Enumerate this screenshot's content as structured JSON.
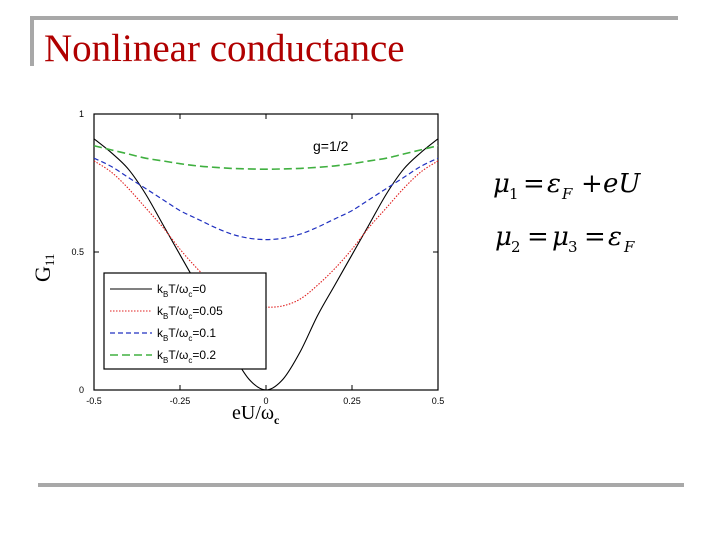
{
  "slide": {
    "title": "Nonlinear conductance"
  },
  "equations": {
    "line1": {
      "mu": "μ",
      "mu_sub": "1",
      "equals": "=",
      "eps": "ε",
      "eps_sub": "F",
      "plus": "+",
      "rest": "eU"
    },
    "line2": {
      "mu_a": "μ",
      "mu_a_sub": "2",
      "equals1": "=",
      "mu_b": "μ",
      "mu_b_sub": "3",
      "equals2": "=",
      "eps": "ε",
      "eps_sub": "F"
    }
  },
  "chart_data": {
    "type": "line",
    "annotation": "g=1/2",
    "xlabel": "eU/ω",
    "xlabel_sub": "c",
    "ylabel": "G",
    "ylabel_sub": "11",
    "xlim": [
      -0.5,
      0.5
    ],
    "ylim": [
      0,
      1
    ],
    "x_ticks": [
      "-0.5",
      "-0.25",
      "0",
      "0.25",
      "0.5"
    ],
    "y_ticks": [
      "0",
      "0.5",
      "1"
    ],
    "legend_position": "bottom-left",
    "x": [
      -0.5,
      -0.45,
      -0.4,
      -0.35,
      -0.3,
      -0.25,
      -0.2,
      -0.15,
      -0.1,
      -0.05,
      0,
      0.05,
      0.1,
      0.15,
      0.2,
      0.25,
      0.3,
      0.35,
      0.4,
      0.45,
      0.5
    ],
    "series": [
      {
        "label_main": "k",
        "label_sub1": "B",
        "label_mid": "T/ω",
        "label_sub2": "c",
        "label_val": "=0",
        "color": "#000000",
        "dash": "none",
        "width": 1.1,
        "values": [
          0.91,
          0.86,
          0.8,
          0.71,
          0.6,
          0.49,
          0.38,
          0.27,
          0.14,
          0.04,
          0.0,
          0.04,
          0.14,
          0.27,
          0.38,
          0.49,
          0.6,
          0.71,
          0.8,
          0.86,
          0.91
        ]
      },
      {
        "label_main": "k",
        "label_sub1": "B",
        "label_mid": "T/ω",
        "label_sub2": "c",
        "label_val": "=0.05",
        "color": "#e02020",
        "dash": "1.5,1.5",
        "width": 1.1,
        "values": [
          0.83,
          0.79,
          0.73,
          0.66,
          0.59,
          0.51,
          0.44,
          0.38,
          0.33,
          0.305,
          0.3,
          0.305,
          0.33,
          0.38,
          0.44,
          0.51,
          0.59,
          0.66,
          0.73,
          0.79,
          0.83
        ]
      },
      {
        "label_main": "k",
        "label_sub1": "B",
        "label_mid": "T/ω",
        "label_sub2": "c",
        "label_val": "=0.1",
        "color": "#2030c0",
        "dash": "5,3",
        "width": 1.2,
        "values": [
          0.84,
          0.81,
          0.77,
          0.73,
          0.69,
          0.65,
          0.62,
          0.59,
          0.565,
          0.55,
          0.545,
          0.55,
          0.565,
          0.59,
          0.62,
          0.65,
          0.69,
          0.73,
          0.77,
          0.81,
          0.84
        ]
      },
      {
        "label_main": "k",
        "label_sub1": "B",
        "label_mid": "T/ω",
        "label_sub2": "c",
        "label_val": "=0.2",
        "color": "#40b040",
        "dash": "8,4",
        "width": 1.6,
        "values": [
          0.885,
          0.87,
          0.855,
          0.84,
          0.83,
          0.82,
          0.812,
          0.807,
          0.803,
          0.801,
          0.8,
          0.801,
          0.803,
          0.807,
          0.812,
          0.82,
          0.83,
          0.84,
          0.855,
          0.87,
          0.885
        ]
      }
    ]
  }
}
